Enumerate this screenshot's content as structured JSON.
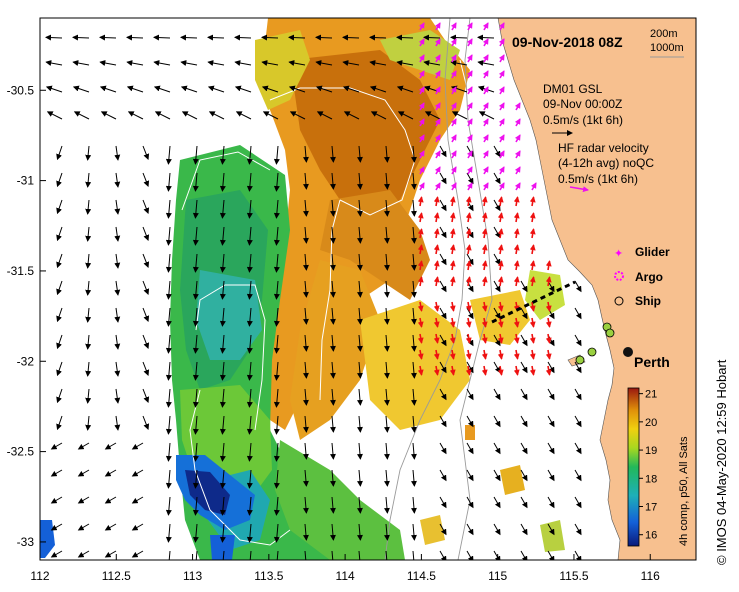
{
  "title": "09-Nov-2018 08Z",
  "scale_bar": {
    "label1": "200m",
    "label2": "1000m"
  },
  "station": {
    "name": "DM01 GSL",
    "time": "09-Nov 00:00Z",
    "ref_speed": "0.5m/s (1kt 6h)"
  },
  "hf_radar": {
    "line1": "HF radar velocity",
    "line2": "(4-12h avg) noQC",
    "ref_speed": "0.5m/s (1kt 6h)"
  },
  "legend": [
    {
      "label": "Glider",
      "color": "#ff00ff",
      "marker": "star"
    },
    {
      "label": "Argo",
      "color": "#ff00ff",
      "marker": "circle-dotted"
    },
    {
      "label": "Ship",
      "color": "#000000",
      "marker": "circle-open"
    }
  ],
  "city": {
    "name": "Perth"
  },
  "colorbar": {
    "label": "4h comp, p50, All Sats",
    "ticks": [
      "21",
      "20",
      "19",
      "18",
      "17",
      "16"
    ],
    "min": 15.6,
    "max": 21.2
  },
  "credit": "© IMOS 04-May-2020 12:59 Hobart",
  "axes": {
    "x_ticks": [
      "112",
      "112.5",
      "113",
      "113.5",
      "114",
      "114.5",
      "115",
      "115.5",
      "116"
    ],
    "y_ticks": [
      "-30.5",
      "-31",
      "-31.5",
      "-32",
      "-32.5",
      "-33"
    ],
    "lon_range": [
      112,
      116.3
    ],
    "lat_range": [
      -33.1,
      -30.1
    ]
  },
  "colors": {
    "land": "#f7c08f",
    "model_arrow": "#000000",
    "radar_south": "#ee1111",
    "radar_north": "#ee11ee",
    "track": "#000000",
    "bathy": "#9a9a9a",
    "contour": "#ffffff"
  }
}
